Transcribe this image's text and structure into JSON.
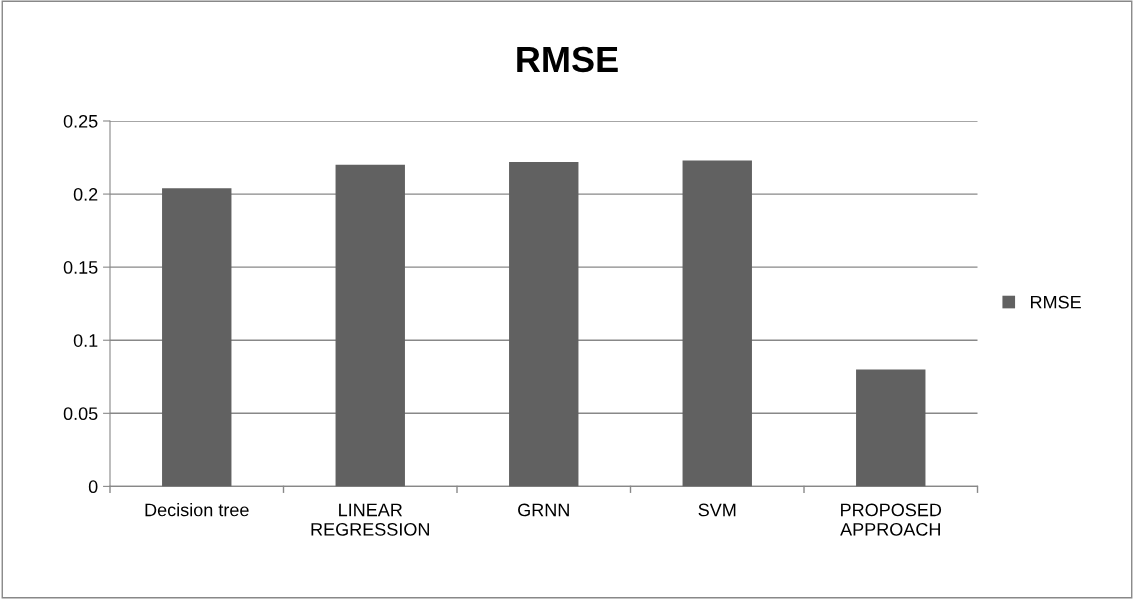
{
  "chart_data": {
    "type": "bar",
    "title": "RMSE",
    "categories": [
      "Decision tree",
      "LINEAR\nREGRESSION",
      "GRNN",
      "SVM",
      "PROPOSED\nAPPROACH"
    ],
    "series": [
      {
        "name": "RMSE",
        "color": "#616161",
        "values": [
          0.204,
          0.22,
          0.222,
          0.223,
          0.08
        ]
      }
    ],
    "ylim": [
      0,
      0.25
    ],
    "yticks": [
      0,
      0.05,
      0.1,
      0.15,
      0.2,
      0.25
    ],
    "grid": "y",
    "legend": "right"
  }
}
